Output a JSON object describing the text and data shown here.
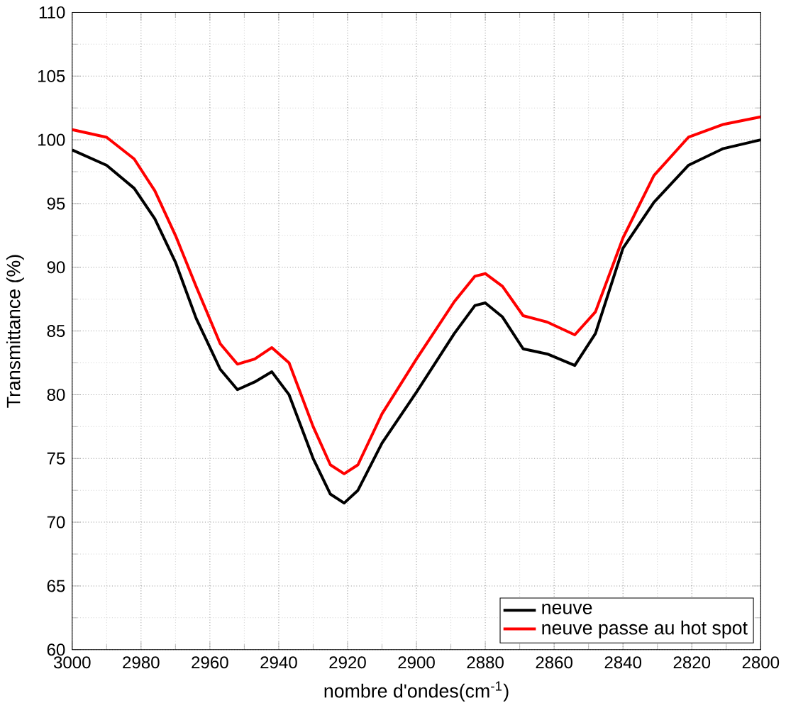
{
  "chart_data": {
    "type": "line",
    "xlabel": "nombre d'ondes(cm$^{-1}$)",
    "ylabel": "Transmittance (%)",
    "x": [
      3000,
      2990,
      2982,
      2976,
      2970,
      2964,
      2957,
      2952,
      2947,
      2942,
      2937,
      2930,
      2925,
      2921,
      2917,
      2910,
      2900,
      2889,
      2883,
      2880,
      2875,
      2869,
      2862,
      2854,
      2848,
      2840,
      2831,
      2821,
      2811,
      2800
    ],
    "series": [
      {
        "name": "neuve",
        "color": "#000000",
        "values": [
          99.2,
          98.0,
          96.2,
          93.8,
          90.4,
          86.0,
          82.0,
          80.4,
          81.0,
          81.8,
          80.0,
          75.0,
          72.2,
          71.5,
          72.5,
          76.2,
          80.2,
          84.8,
          87.0,
          87.2,
          86.1,
          83.6,
          83.2,
          82.3,
          84.8,
          91.5,
          95.1,
          98.0,
          99.3,
          100.0
        ]
      },
      {
        "name": "neuve passe au hot spot",
        "color": "#ff0000",
        "values": [
          100.8,
          100.2,
          98.5,
          96.0,
          92.5,
          88.5,
          84.0,
          82.4,
          82.8,
          83.7,
          82.5,
          77.5,
          74.5,
          73.8,
          74.5,
          78.5,
          82.8,
          87.3,
          89.3,
          89.5,
          88.5,
          86.2,
          85.7,
          84.7,
          86.5,
          92.3,
          97.2,
          100.2,
          101.2,
          101.8
        ]
      }
    ],
    "xlim": [
      3000,
      2800
    ],
    "xticks": [
      3000,
      2980,
      2960,
      2940,
      2920,
      2900,
      2880,
      2860,
      2840,
      2820,
      2800
    ],
    "ylim": [
      60,
      110
    ],
    "yticks": [
      60,
      65,
      70,
      75,
      80,
      85,
      90,
      95,
      100,
      105,
      110
    ],
    "grid": true,
    "legend": "bottom right",
    "marker": "none",
    "line_style": "solid"
  }
}
